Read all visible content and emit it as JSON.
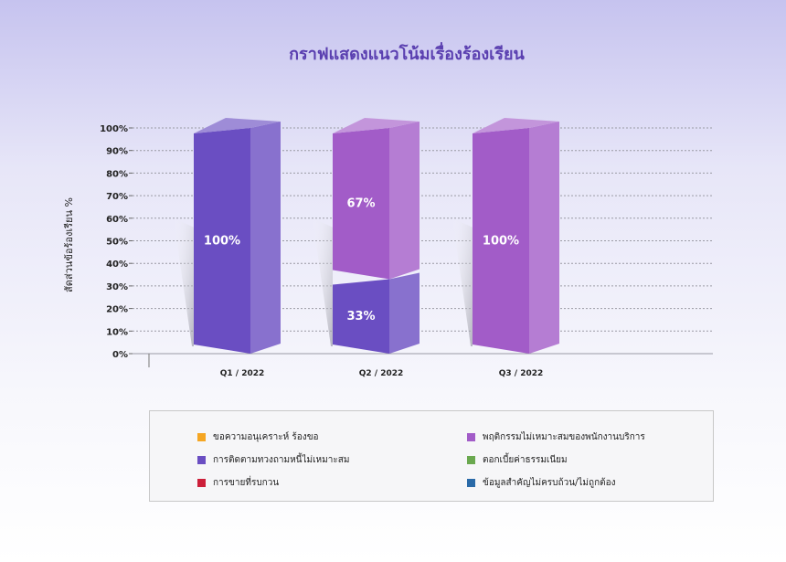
{
  "title": "กราฟแสดงแนวโน้มเรื่องร้องเรียน",
  "chart_data": {
    "type": "bar",
    "stacked": true,
    "three_d": true,
    "ylabel": "สัดส่วนข้อร้องเรียน %",
    "ylim": [
      0,
      100
    ],
    "yticks": [
      "0%",
      "10%",
      "20%",
      "30%",
      "40%",
      "50%",
      "60%",
      "70%",
      "80%",
      "90%",
      "100%"
    ],
    "categories": [
      "Q1 / 2022",
      "Q2 / 2022",
      "Q3 / 2022"
    ],
    "series": [
      {
        "name": "การติดตามทวงถามหนี้ไม่เหมาะสม",
        "color": "#6a4ec2",
        "values": [
          100,
          33,
          0
        ]
      },
      {
        "name": "พฤติกรรมไม่เหมาะสมของพนักงานบริการ",
        "color": "#a25cc8",
        "values": [
          0,
          67,
          100
        ]
      }
    ],
    "data_labels": [
      [
        {
          "text": "100%"
        }
      ],
      [
        {
          "text": "33%"
        },
        {
          "text": "67%"
        }
      ],
      [
        {
          "text": "100%"
        }
      ]
    ],
    "grid": true
  },
  "legend": {
    "items": [
      {
        "label": "ขอความอนุเคราะห์ ร้องขอ",
        "color": "#f5a623"
      },
      {
        "label": "พฤติกรรมไม่เหมาะสมของพนักงานบริการ",
        "color": "#a25cc8"
      },
      {
        "label": "การติดตามทวงถามหนี้ไม่เหมาะสม",
        "color": "#6a4ec2"
      },
      {
        "label": "ตอกเบี้ยค่าธรรมเนียม",
        "color": "#6aa84f"
      },
      {
        "label": "การขายที่รบกวน",
        "color": "#cc1f3a"
      },
      {
        "label": "ข้อมูลสำคัญไม่ครบถ้วน/ไม่ถูกต้อง",
        "color": "#2a6aa8"
      }
    ]
  }
}
